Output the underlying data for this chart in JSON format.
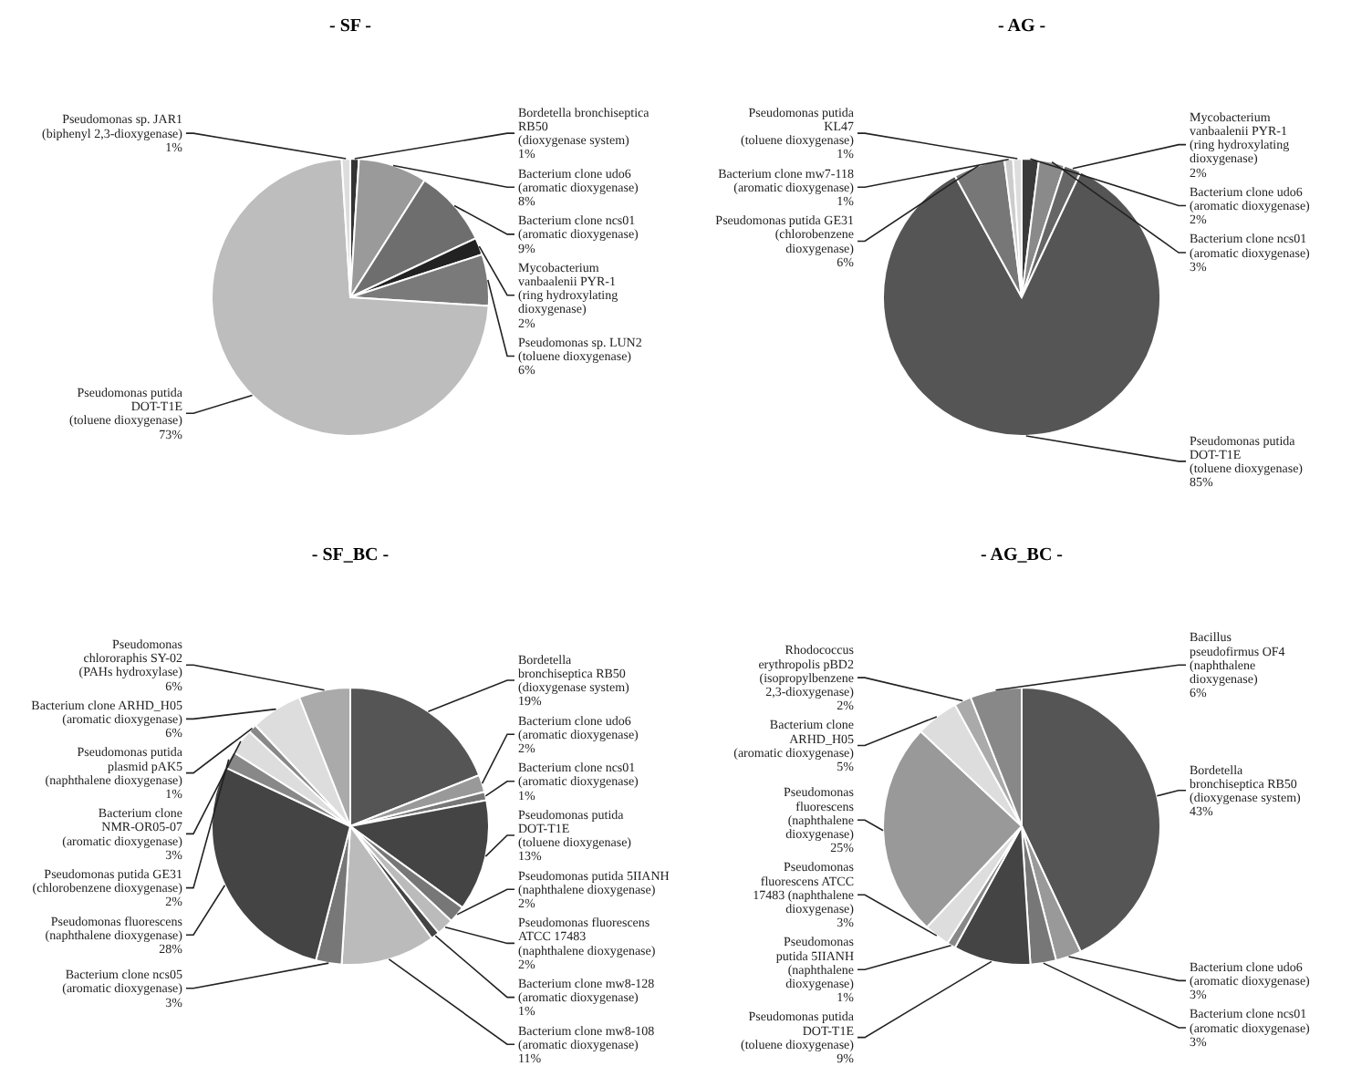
{
  "chart_data": [
    {
      "type": "pie",
      "title": "- SF -",
      "categories": [
        "Bordetella bronchiseptica\nRB50\n(dioxygenase system)",
        "Bacterium clone udo6\n(aromatic dioxygenase)",
        "Bacterium clone ncs01\n(aromatic dioxygenase)",
        "Mycobacterium\nvanbaalenii PYR-1\n(ring hydroxylating\ndioxygenase)",
        "Pseudomonas sp. LUN2\n(toluene dioxygenase)",
        "Pseudomonas putida\nDOT-T1E\n(toluene dioxygenase)",
        "Pseudomonas sp. JAR1\n(biphenyl 2,3-dioxygenase)"
      ],
      "values": [
        1,
        8,
        9,
        2,
        6,
        73,
        1
      ],
      "value_labels": [
        "1%",
        "8%",
        "9%",
        "2%",
        "6%",
        "73%",
        "1%"
      ],
      "colors": [
        "#333333",
        "#9a9a9a",
        "#6e6e6e",
        "#222222",
        "#7a7a7a",
        "#bdbdbd",
        "#dddddd"
      ]
    },
    {
      "type": "pie",
      "title": "- AG -",
      "categories": [
        "Bacterium clone udo6\n(aromatic dioxygenase)",
        "Bacterium clone ncs01\n(aromatic dioxygenase)",
        "Mycobacterium\nvanbaalenii PYR-1\n(ring hydroxylating\ndioxygenase)",
        "Pseudomonas putida\nDOT-T1E\n(toluene dioxygenase)",
        "Pseudomonas putida GE31\n(chlorobenzene\ndioxygenase)",
        "Bacterium clone mw7-118\n(aromatic dioxygenase)",
        "Pseudomonas putida\nKL47\n(toluene dioxygenase)"
      ],
      "values": [
        2,
        3,
        2,
        85,
        6,
        1,
        1
      ],
      "value_labels": [
        "2%",
        "3%",
        "2%",
        "85%",
        "6%",
        "1%",
        "1%"
      ],
      "colors": [
        "#3a3a3a",
        "#8a8a8a",
        "#666666",
        "#555555",
        "#777777",
        "#cccccc",
        "#dddddd"
      ]
    },
    {
      "type": "pie",
      "title": "- SF_BC -",
      "categories": [
        "Bordetella\nbronchiseptica RB50\n(dioxygenase system)",
        "Bacterium clone udo6\n(aromatic dioxygenase)",
        "Bacterium clone ncs01\n(aromatic dioxygenase)",
        "Pseudomonas putida\nDOT-T1E\n(toluene dioxygenase)",
        "Pseudomonas putida 5IIANH\n(naphthalene dioxygenase)",
        "Pseudomonas fluorescens\nATCC 17483\n(naphthalene dioxygenase)",
        "Bacterium clone mw8-128\n(aromatic dioxygenase)",
        "Bacterium clone mw8-108\n(aromatic dioxygenase)",
        "Bacterium clone ncs05\n(aromatic dioxygenase)",
        "Pseudomonas fluorescens\n(naphthalene dioxygenase)",
        "Pseudomonas putida GE31\n(chlorobenzene dioxygenase)",
        "Bacterium clone\nNMR-OR05-07\n(aromatic dioxygenase)",
        "Pseudomonas putida\nplasmid pAK5\n(naphthalene dioxygenase)",
        "Bacterium clone ARHD_H05\n(aromatic dioxygenase)",
        "Pseudomonas\nchlororaphis SY-02\n(PAHs hydroxylase)"
      ],
      "values": [
        19,
        2,
        1,
        13,
        2,
        2,
        1,
        11,
        3,
        28,
        2,
        3,
        1,
        6,
        6
      ],
      "value_labels": [
        "19%",
        "2%",
        "1%",
        "13%",
        "2%",
        "2%",
        "1%",
        "11%",
        "3%",
        "28%",
        "2%",
        "3%",
        "1%",
        "6%",
        "6%"
      ],
      "colors": [
        "#555555",
        "#999999",
        "#777777",
        "#444444",
        "#777777",
        "#bbbbbb",
        "#444444",
        "#bbbbbb",
        "#777777",
        "#444444",
        "#888888",
        "#dddddd",
        "#888888",
        "#dddddd",
        "#aaaaaa"
      ]
    },
    {
      "type": "pie",
      "title": "- AG_BC -",
      "categories": [
        "Bordetella\nbronchiseptica RB50\n(dioxygenase system)",
        "Bacterium clone udo6\n(aromatic dioxygenase)",
        "Bacterium clone ncs01\n(aromatic dioxygenase)",
        "Pseudomonas putida\nDOT-T1E\n(toluene dioxygenase)",
        "Pseudomonas\nputida 5IIANH\n(naphthalene\ndioxygenase)",
        "Pseudomonas\nfluorescens ATCC\n17483 (naphthalene\ndioxygenase)",
        "Pseudomonas\nfluorescens\n(naphthalene\ndioxygenase)",
        "Bacterium clone\nARHD_H05\n(aromatic dioxygenase)",
        "Rhodococcus\nerythropolis pBD2\n(isopropylbenzene\n2,3-dioxygenase)",
        "Bacillus\npseudofirmus OF4\n(naphthalene\ndioxygenase)"
      ],
      "values": [
        43,
        3,
        3,
        9,
        1,
        3,
        25,
        5,
        2,
        6
      ],
      "value_labels": [
        "43%",
        "3%",
        "3%",
        "9%",
        "1%",
        "3%",
        "25%",
        "5%",
        "2%",
        "6%"
      ],
      "colors": [
        "#555555",
        "#999999",
        "#777777",
        "#444444",
        "#888888",
        "#dddddd",
        "#999999",
        "#dddddd",
        "#aaaaaa",
        "#888888"
      ]
    }
  ]
}
